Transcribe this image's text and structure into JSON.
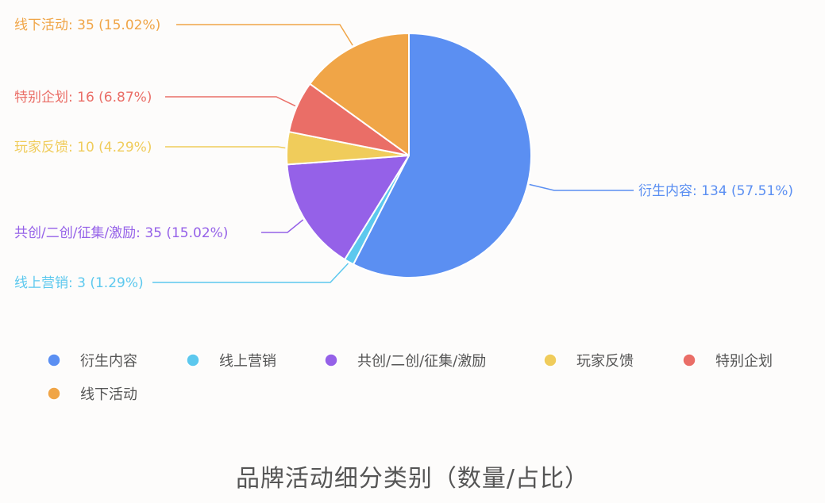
{
  "chart_data": {
    "type": "pie",
    "title": "品牌活动细分类别（数量/占比）",
    "legend_position": "bottom",
    "slices": [
      {
        "name": "衍生内容",
        "value": 134,
        "percent": "57.51%",
        "color": "#5b8ff2"
      },
      {
        "name": "线上营销",
        "value": 3,
        "percent": "1.29%",
        "color": "#5cc8ee"
      },
      {
        "name": "共创/二创/征集/激励",
        "value": 35,
        "percent": "15.02%",
        "color": "#9561e8"
      },
      {
        "name": "玩家反馈",
        "value": 10,
        "percent": "4.29%",
        "color": "#f0cc5b"
      },
      {
        "name": "特别企划",
        "value": 16,
        "percent": "6.87%",
        "color": "#ea6e67"
      },
      {
        "name": "线下活动",
        "value": 35,
        "percent": "15.02%",
        "color": "#f0a547"
      }
    ]
  }
}
